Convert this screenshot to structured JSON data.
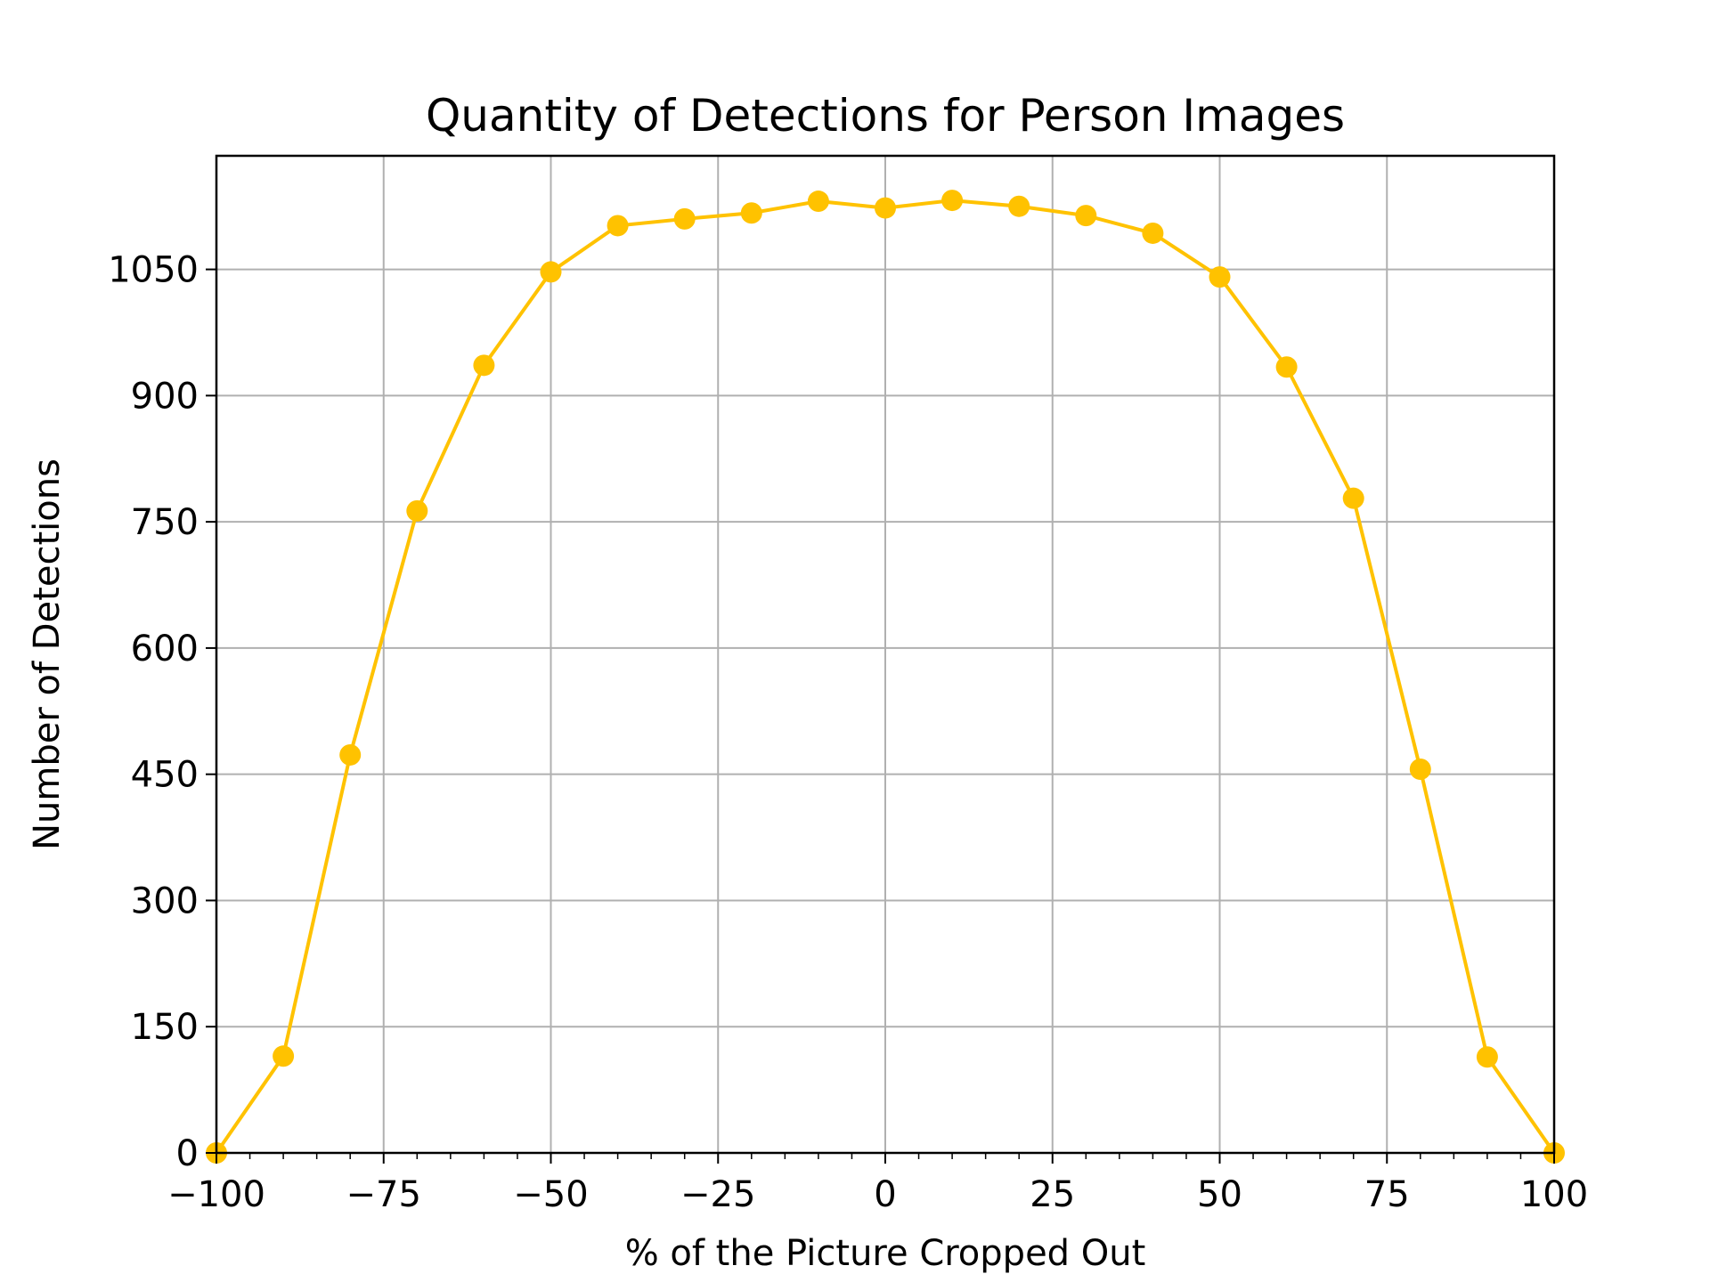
{
  "chart_data": {
    "type": "line",
    "title": "Quantity of Detections for Person Images",
    "xlabel": "% of the Picture Cropped Out",
    "ylabel": "Number of Detections",
    "xlim": [
      -100,
      100
    ],
    "ylim": [
      0,
      1185
    ],
    "xticks": [
      -100,
      -75,
      -50,
      -25,
      0,
      25,
      50,
      75,
      100
    ],
    "xtick_labels": [
      "−100",
      "−75",
      "−50",
      "−25",
      "0",
      "25",
      "50",
      "75",
      "100"
    ],
    "yticks": [
      0,
      150,
      300,
      450,
      600,
      750,
      900,
      1050
    ],
    "ytick_labels": [
      "0",
      "150",
      "300",
      "450",
      "600",
      "750",
      "900",
      "1050"
    ],
    "grid": true,
    "legend": "none",
    "series": [
      {
        "color": "#FFC200",
        "x": [
          -100,
          -90,
          -80,
          -70,
          -60,
          -50,
          -40,
          -30,
          -20,
          -10,
          0,
          10,
          20,
          30,
          40,
          50,
          60,
          70,
          80,
          90,
          100
        ],
        "values": [
          0,
          115,
          473,
          763,
          936,
          1047,
          1102,
          1110,
          1117,
          1131,
          1123,
          1132,
          1125,
          1114,
          1093,
          1041,
          934,
          778,
          456,
          114,
          0
        ]
      }
    ]
  }
}
